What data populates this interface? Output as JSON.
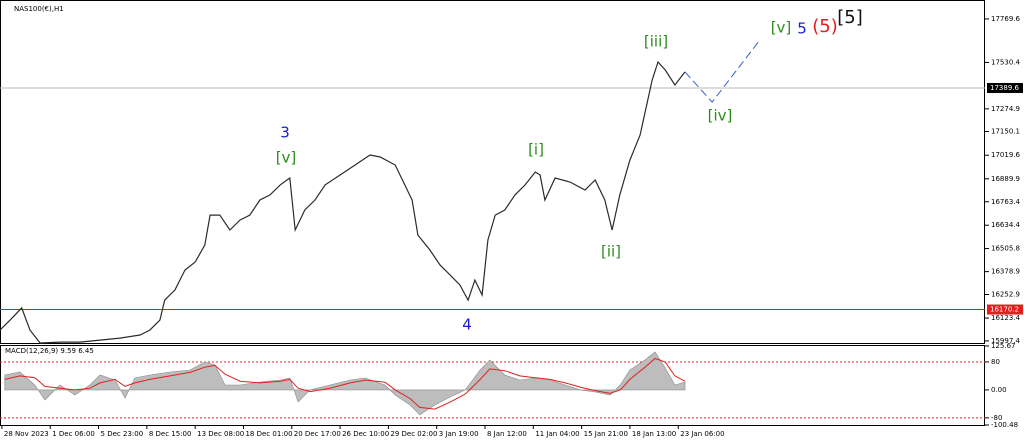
{
  "chart_data": [
    {
      "type": "line",
      "title": "NAS100(€),H1",
      "xlim": [
        -0.04,
        20.35
      ],
      "ylim": [
        15986,
        17852
      ],
      "yticks": [
        15997.4,
        16123.4,
        16252.9,
        16378.9,
        16505.8,
        16634.4,
        16763.4,
        16889.9,
        17019.6,
        17150.1,
        17274.9,
        17530.4,
        17769.6
      ],
      "series": [
        {
          "color": "#2b2b2b",
          "style": "solid",
          "x": [
            -0.04,
            0.17,
            0.41,
            0.58,
            0.79,
            1.2,
            1.61,
            2.03,
            2.44,
            2.86,
            3.06,
            3.27,
            3.37,
            3.58,
            3.79,
            4.0,
            4.2,
            4.31,
            4.51,
            4.72,
            4.93,
            5.13,
            5.34,
            5.55,
            5.76,
            5.96,
            6.07,
            6.27,
            6.48,
            6.69,
            7.0,
            7.31,
            7.62,
            7.83,
            8.14,
            8.34,
            8.49,
            8.61,
            8.86,
            9.07,
            9.28,
            9.48,
            9.65,
            9.79,
            9.94,
            10.06,
            10.21,
            10.41,
            10.62,
            10.83,
            11.04,
            11.14,
            11.24,
            11.45,
            11.76,
            12.07,
            12.28,
            12.48,
            12.63,
            12.79,
            13.0,
            13.21,
            13.37,
            13.46,
            13.58,
            13.73,
            13.93,
            14.14
          ],
          "values": [
            16057,
            16112,
            16179,
            16057,
            15986,
            15991,
            15991,
            16002,
            16013,
            16030,
            16057,
            16112,
            16222,
            16278,
            16388,
            16432,
            16525,
            16690,
            16690,
            16608,
            16663,
            16690,
            16773,
            16801,
            16856,
            16894,
            16608,
            16718,
            16773,
            16856,
            16911,
            16966,
            17021,
            17010,
            16966,
            16856,
            16773,
            16580,
            16498,
            16415,
            16360,
            16305,
            16222,
            16332,
            16250,
            16553,
            16690,
            16718,
            16801,
            16856,
            16927,
            16911,
            16773,
            16894,
            16872,
            16828,
            16883,
            16773,
            16608,
            16801,
            16993,
            17131,
            17324,
            17434,
            17533,
            17489,
            17406,
            17478
          ]
        },
        {
          "color": "#3a5fcd",
          "style": "dashed",
          "x": [
            14.14,
            14.7,
            15.69
          ],
          "values": [
            17478,
            17312,
            17654
          ]
        }
      ],
      "price_lines": [
        {
          "value": 17389.6,
          "color": "#b8b8b8",
          "label_bg": "#000000"
        },
        {
          "value": 16170.2,
          "color": "#e02020",
          "label_bg": "#e02020"
        }
      ],
      "annotations": [
        {
          "text": "3",
          "color": "#1a1ad0"
        },
        {
          "text": "[v]",
          "color": "#2e8b1e"
        },
        {
          "text": "4",
          "color": "#1a1ad0"
        },
        {
          "text": "[i]",
          "color": "#2e8b1e"
        },
        {
          "text": "[ii]",
          "color": "#2e8b1e"
        },
        {
          "text": "[iii]",
          "color": "#2e8b1e"
        },
        {
          "text": "[iv]",
          "color": "#2e8b1e"
        },
        {
          "text": "[v]",
          "color": "#2e8b1e"
        },
        {
          "text": "5",
          "color": "#1a1ad0"
        },
        {
          "text": "(5)",
          "color": "#e02020"
        },
        {
          "text": "[5]",
          "color": "#111111"
        }
      ]
    },
    {
      "type": "macd",
      "title": "MACD(12,26,9) 9.59 6.45",
      "xlim": [
        -0.04,
        20.35
      ],
      "ylim": [
        -100.48,
        125.67
      ],
      "yticks": [
        125.67,
        80,
        {
          "value": 0,
          "label": "0.00"
        },
        {
          "value": -80,
          "label": "-80"
        },
        -100.48
      ],
      "levels": [
        80,
        -80
      ],
      "xticks": [
        {
          "value": 0,
          "label": "28 Nov 2023"
        },
        {
          "value": 1,
          "label": "1 Dec 06:00"
        },
        {
          "value": 2,
          "label": "5 Dec 23:00"
        },
        {
          "value": 3,
          "label": "8 Dec 15:00"
        },
        {
          "value": 4,
          "label": "13 Dec 08:00"
        },
        {
          "value": 5,
          "label": "18 Dec 01:00"
        },
        {
          "value": 6,
          "label": "20 Dec 17:00"
        },
        {
          "value": 7,
          "label": "26 Dec 10:00"
        },
        {
          "value": 8,
          "label": "29 Dec 02:00"
        },
        {
          "value": 9,
          "label": "3 Jan 19:00"
        },
        {
          "value": 10,
          "label": "8 Jan 12:00"
        },
        {
          "value": 11,
          "label": "11 Jan 04:00"
        },
        {
          "value": 12,
          "label": "15 Jan 21:00"
        },
        {
          "value": 13,
          "label": "18 Jan 13:00"
        },
        {
          "value": 14,
          "label": "23 Jan 06:00"
        }
      ],
      "series": [
        {
          "color": "#bdbdbd",
          "style": "area",
          "x": [
            0.06,
            0.37,
            0.68,
            0.89,
            1.2,
            1.51,
            1.82,
            2.03,
            2.34,
            2.55,
            2.75,
            3.06,
            3.48,
            3.89,
            4.2,
            4.41,
            4.62,
            4.93,
            5.34,
            5.76,
            5.96,
            6.13,
            6.38,
            6.79,
            7.21,
            7.52,
            7.93,
            8.14,
            8.45,
            8.65,
            8.96,
            9.28,
            9.59,
            9.9,
            10.1,
            10.41,
            10.72,
            11.04,
            11.35,
            11.66,
            11.97,
            12.28,
            12.59,
            12.8,
            13.0,
            13.31,
            13.52,
            13.73,
            13.93,
            14.14
          ],
          "values": [
            42.7,
            51.3,
            14.1,
            -28.8,
            14.1,
            -14.5,
            14.1,
            42.7,
            28.4,
            -23.1,
            34.2,
            42.7,
            51.3,
            57.0,
            79.9,
            71.3,
            14.1,
            14.1,
            22.7,
            28.4,
            34.2,
            -34.5,
            0,
            14.1,
            28.4,
            34.2,
            14.1,
            -14.5,
            -43.1,
            -71.7,
            -43.1,
            -20.2,
            0,
            57.0,
            85.6,
            42.7,
            28.4,
            34.2,
            28.4,
            14.1,
            0,
            -5.9,
            -14.5,
            14.1,
            57.0,
            85.6,
            108.5,
            62.8,
            14.1,
            22.7
          ]
        },
        {
          "color": "#e02020",
          "style": "solid",
          "x": [
            0.06,
            0.37,
            0.68,
            0.89,
            1.2,
            1.51,
            1.82,
            2.03,
            2.34,
            2.55,
            2.75,
            3.06,
            3.48,
            3.89,
            4.2,
            4.41,
            4.62,
            4.93,
            5.34,
            5.76,
            5.96,
            6.13,
            6.38,
            6.79,
            7.21,
            7.52,
            7.93,
            8.14,
            8.45,
            8.65,
            8.96,
            9.28,
            9.59,
            9.9,
            10.1,
            10.41,
            10.72,
            11.04,
            11.35,
            11.66,
            11.97,
            12.28,
            12.59,
            12.8,
            13.0,
            13.31,
            13.52,
            13.73,
            13.93,
            14.14
          ],
          "values": [
            30,
            40,
            35,
            10,
            5,
            0,
            5,
            20,
            30,
            10,
            20,
            30,
            40,
            50,
            65,
            70,
            45,
            25,
            20,
            25,
            30,
            5,
            -5,
            5,
            20,
            28,
            22,
            0,
            -25,
            -50,
            -55,
            -35,
            -12,
            30,
            60,
            55,
            40,
            35,
            30,
            20,
            8,
            -2,
            -10,
            0,
            30,
            65,
            90,
            80,
            40,
            25
          ]
        }
      ]
    }
  ]
}
